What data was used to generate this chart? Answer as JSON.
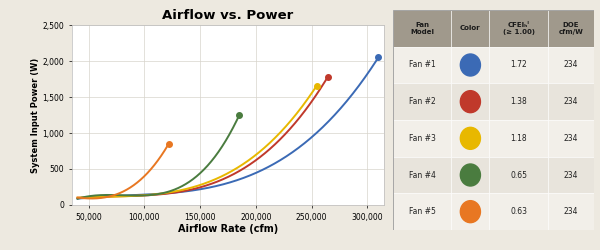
{
  "title": "Airflow vs. Power",
  "xlabel": "Airflow Rate (cfm)",
  "ylabel": "System Input Power (W)",
  "xlim": [
    35000,
    315000
  ],
  "ylim": [
    0,
    2500
  ],
  "xticks": [
    50000,
    100000,
    150000,
    200000,
    250000,
    300000
  ],
  "xtick_labels": [
    "50,000",
    "100,000",
    "150,000",
    "200,000",
    "250,000",
    "300,000"
  ],
  "yticks": [
    0,
    500,
    1000,
    1500,
    2000,
    2500
  ],
  "ytick_labels": [
    "0",
    "500",
    "1,000",
    "1,500",
    "2,000",
    "2,500"
  ],
  "fans": [
    {
      "name": "Fan #1",
      "color": "#3B6AB5",
      "cfei": "1.72",
      "doe": "234",
      "x": [
        40000,
        62000,
        85000,
        112000,
        145000,
        185000,
        235000,
        280000,
        310000
      ],
      "y": [
        100,
        105,
        120,
        155,
        210,
        370,
        750,
        1400,
        2060
      ]
    },
    {
      "name": "Fan #2",
      "color": "#C0392B",
      "cfei": "1.38",
      "doe": "234",
      "x": [
        40000,
        62000,
        85000,
        112000,
        145000,
        185000,
        225000,
        265000
      ],
      "y": [
        100,
        108,
        125,
        160,
        230,
        430,
        1000,
        1780
      ]
    },
    {
      "name": "Fan #3",
      "color": "#E8B800",
      "cfei": "1.18",
      "doe": "234",
      "x": [
        40000,
        62000,
        85000,
        112000,
        145000,
        185000,
        225000,
        255000
      ],
      "y": [
        100,
        108,
        128,
        165,
        250,
        500,
        1100,
        1650
      ]
    },
    {
      "name": "Fan #4",
      "color": "#4A7C3F",
      "cfei": "0.65",
      "doe": "234",
      "x": [
        40000,
        62000,
        85000,
        112000,
        145000,
        185000
      ],
      "y": [
        100,
        110,
        135,
        185,
        350,
        1250
      ]
    },
    {
      "name": "Fan #5",
      "color": "#E87722",
      "cfei": "0.63",
      "doe": "234",
      "x": [
        40000,
        62000,
        85000,
        105000,
        122000
      ],
      "y": [
        100,
        112,
        200,
        500,
        850
      ]
    }
  ],
  "table_header_bg": "#A0998C",
  "table_row_bg_even": "#F2EFE9",
  "table_row_bg_odd": "#E8E4DC",
  "background_color": "#EDE9E0"
}
